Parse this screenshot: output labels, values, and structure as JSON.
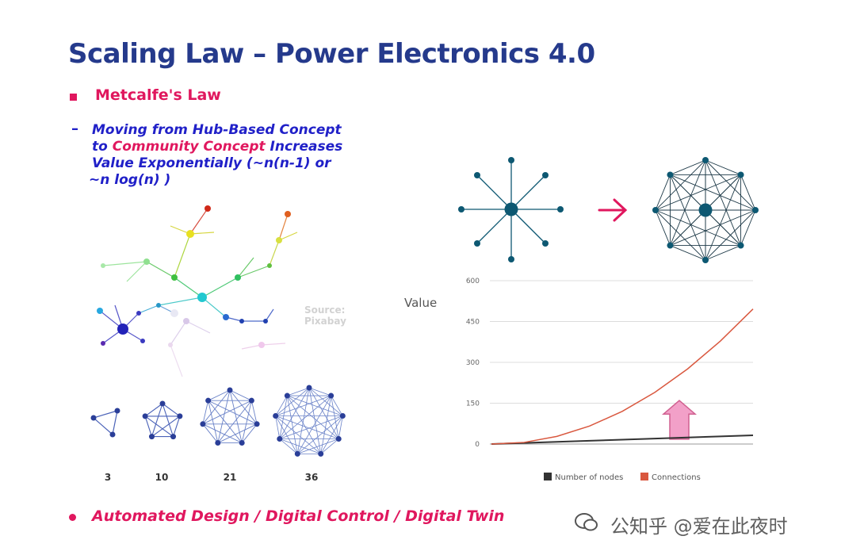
{
  "slide": {
    "title": "Scaling Law – Power Electronics 4.0",
    "bullet1": "Metcalfe's Law",
    "sub_dash": "–",
    "sub_line1": "Moving from Hub-Based Concept",
    "sub_line2_pre": "to ",
    "sub_line2_pink": "Community Concept",
    "sub_line2_post": " Increases",
    "sub_line3": "Value Exponentially (~n(n-1)  or",
    "sub_line4": "~n log(n) )",
    "source_line1": "Source:",
    "source_line2": "Pixabay",
    "node_labels": [
      "3",
      "10",
      "21",
      "36"
    ],
    "value_label": "Value",
    "bullet2": "Automated Design / Digital Control / Digital Twin",
    "watermark": "公知乎  @爱在此夜时",
    "colors": {
      "title": "#253a8c",
      "accent": "#e0175e",
      "body": "#2020c8",
      "network": "#0d5872"
    }
  },
  "chart_data": {
    "type": "line",
    "x": [
      0,
      4,
      8,
      12,
      16,
      20,
      24,
      28,
      32
    ],
    "series": [
      {
        "name": "Number of nodes",
        "color": "#333333",
        "values": [
          0,
          4,
          8,
          12,
          16,
          20,
          24,
          28,
          32
        ]
      },
      {
        "name": "Connections",
        "color": "#d9583f",
        "values": [
          0,
          6,
          28,
          66,
          120,
          190,
          276,
          378,
          496
        ]
      }
    ],
    "yticks": [
      "0",
      "150",
      "300",
      "450",
      "600"
    ],
    "ylim": [
      0,
      600
    ],
    "ylabel": "Value",
    "grid": true,
    "legend_position": "bottom"
  }
}
